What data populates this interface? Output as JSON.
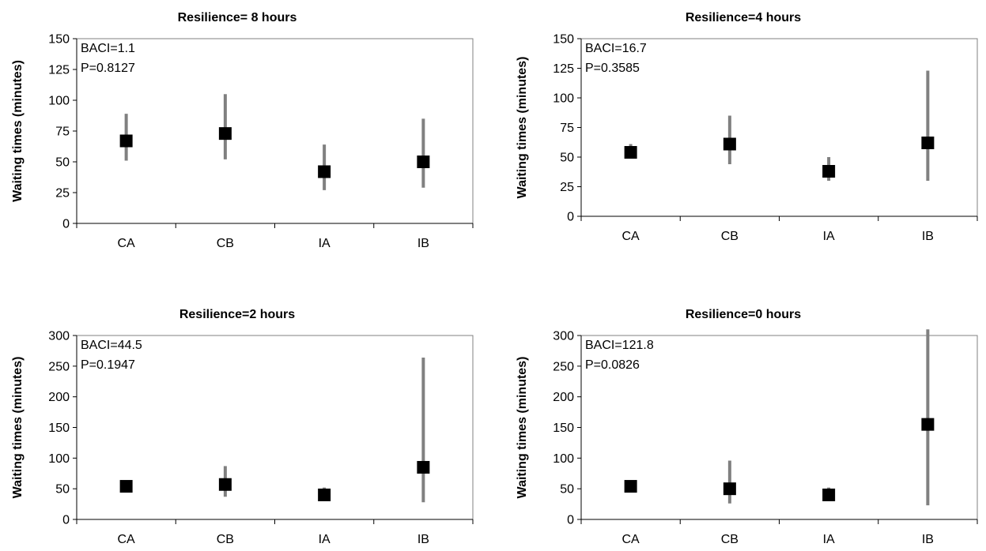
{
  "chart_data": [
    {
      "type": "scatter",
      "title": "Resilience= 8 hours",
      "ylabel": "Waiting times (minutes)",
      "xlabel": "",
      "categories": [
        "CA",
        "CB",
        "IA",
        "IB"
      ],
      "values": [
        67,
        73,
        42,
        50
      ],
      "error_low": [
        51,
        52,
        27,
        29
      ],
      "error_high": [
        89,
        105,
        64,
        85
      ],
      "ylim": [
        0,
        150
      ],
      "yticks": [
        0,
        25,
        50,
        75,
        100,
        125,
        150
      ],
      "annotations": [
        "BACI=1.1",
        "P=0.8127"
      ],
      "grid": false,
      "colors": {
        "marker": "#000000",
        "errorbar": "#808080"
      }
    },
    {
      "type": "scatter",
      "title": "Resilience=4 hours",
      "ylabel": "Waiting times (minutes)",
      "xlabel": "",
      "categories": [
        "CA",
        "CB",
        "IA",
        "IB"
      ],
      "values": [
        54,
        61,
        38,
        62
      ],
      "error_low": [
        54,
        44,
        30,
        30
      ],
      "error_high": [
        61,
        85,
        50,
        123
      ],
      "ylim": [
        0,
        150
      ],
      "yticks": [
        0,
        25,
        50,
        75,
        100,
        125,
        150
      ],
      "annotations": [
        "BACI=16.7",
        "P=0.3585"
      ],
      "grid": false,
      "colors": {
        "marker": "#000000",
        "errorbar": "#808080"
      }
    },
    {
      "type": "scatter",
      "title": "Resilience=2 hours",
      "ylabel": "Waiting times (minutes)",
      "xlabel": "",
      "categories": [
        "CA",
        "CB",
        "IA",
        "IB"
      ],
      "values": [
        54,
        57,
        40,
        85
      ],
      "error_low": [
        54,
        37,
        35,
        28
      ],
      "error_high": [
        60,
        87,
        52,
        264
      ],
      "ylim": [
        0,
        300
      ],
      "yticks": [
        0,
        50,
        100,
        150,
        200,
        250,
        300
      ],
      "annotations": [
        "BACI=44.5",
        "P=0.1947"
      ],
      "grid": false,
      "colors": {
        "marker": "#000000",
        "errorbar": "#808080"
      }
    },
    {
      "type": "scatter",
      "title": "Resilience=0 hours",
      "ylabel": "Waiting times (minutes)",
      "xlabel": "",
      "categories": [
        "CA",
        "CB",
        "IA",
        "IB"
      ],
      "values": [
        54,
        50,
        40,
        155
      ],
      "error_low": [
        54,
        26,
        35,
        23
      ],
      "error_high": [
        60,
        96,
        52,
        310
      ],
      "ylim": [
        0,
        300
      ],
      "yticks": [
        0,
        50,
        100,
        150,
        200,
        250,
        300
      ],
      "annotations": [
        "BACI=121.8",
        "P=0.0826"
      ],
      "grid": false,
      "colors": {
        "marker": "#000000",
        "errorbar": "#808080"
      }
    }
  ]
}
